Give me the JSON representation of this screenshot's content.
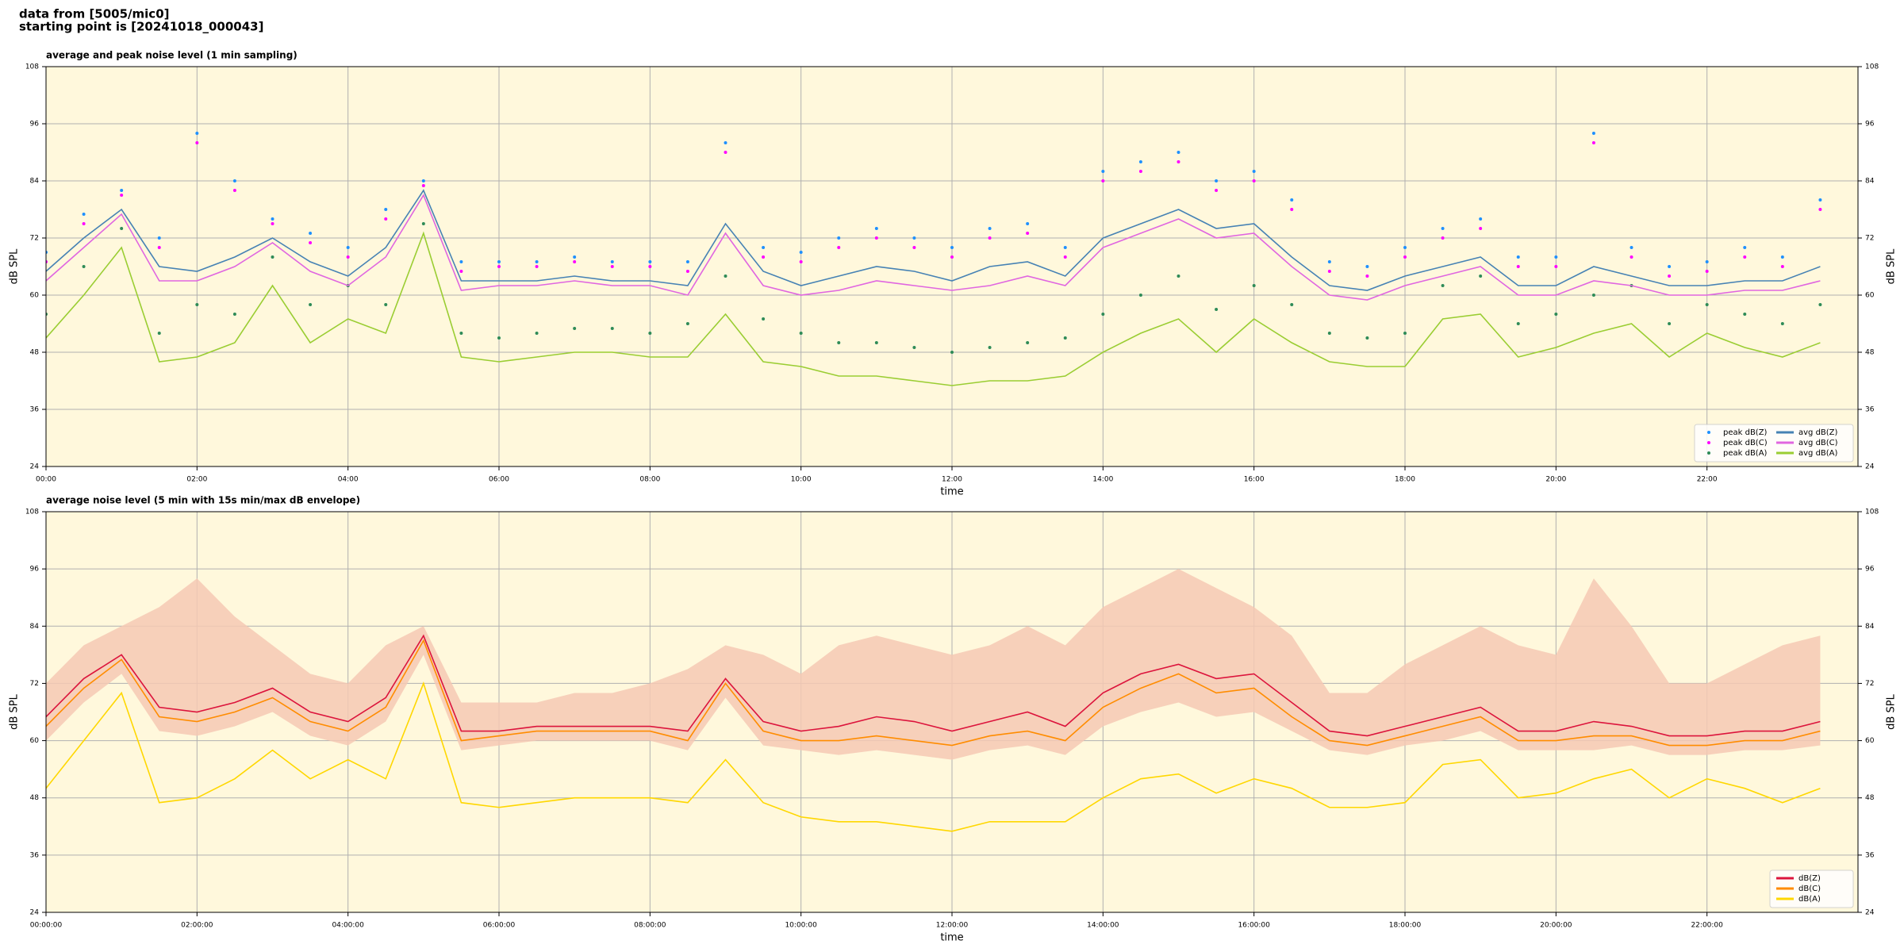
{
  "suptitle": [
    "data from [5005/mic0]",
    "starting point is [20241018_000043]"
  ],
  "chart_data": [
    {
      "type": "line",
      "title": "average and peak noise level (1 min sampling)",
      "xlabel": "time",
      "ylabel": "dB SPL",
      "background": "#fff8dc",
      "grid": true,
      "legend": "lower right",
      "legend_columns": 2,
      "xlim": [
        0,
        24
      ],
      "ylim": [
        24,
        108
      ],
      "yticks": [
        24,
        36,
        48,
        60,
        72,
        84,
        96,
        108
      ],
      "xticks": [
        {
          "value": 0,
          "label": "00:00"
        },
        {
          "value": 2,
          "label": "02:00"
        },
        {
          "value": 4,
          "label": "04:00"
        },
        {
          "value": 6,
          "label": "06:00"
        },
        {
          "value": 8,
          "label": "08:00"
        },
        {
          "value": 10,
          "label": "10:00"
        },
        {
          "value": 12,
          "label": "12:00"
        },
        {
          "value": 14,
          "label": "14:00"
        },
        {
          "value": 16,
          "label": "16:00"
        },
        {
          "value": 18,
          "label": "18:00"
        },
        {
          "value": 20,
          "label": "20:00"
        },
        {
          "value": 22,
          "label": "22:00"
        }
      ],
      "x": [
        0,
        0.5,
        1,
        1.5,
        2,
        2.5,
        3,
        3.5,
        4,
        4.5,
        5,
        5.5,
        6,
        6.5,
        7,
        7.5,
        8,
        8.5,
        9,
        9.5,
        10,
        10.5,
        11,
        11.5,
        12,
        12.5,
        13,
        13.5,
        14,
        14.5,
        15,
        15.5,
        16,
        16.5,
        17,
        17.5,
        18,
        18.5,
        19,
        19.5,
        20,
        20.5,
        21,
        21.5,
        22,
        22.5,
        23,
        23.5
      ],
      "series": [
        {
          "name": "peak dB(Z)",
          "color": "#1e90ff",
          "style": "dots",
          "values": [
            69,
            77,
            82,
            72,
            94,
            84,
            76,
            73,
            70,
            78,
            84,
            67,
            67,
            67,
            68,
            67,
            67,
            67,
            92,
            70,
            69,
            72,
            74,
            72,
            70,
            74,
            75,
            70,
            86,
            88,
            90,
            84,
            86,
            80,
            67,
            66,
            70,
            74,
            76,
            68,
            68,
            94,
            70,
            66,
            67,
            70,
            68,
            80
          ]
        },
        {
          "name": "peak dB(C)",
          "color": "#ff00ff",
          "style": "dots",
          "values": [
            67,
            75,
            81,
            70,
            92,
            82,
            75,
            71,
            68,
            76,
            83,
            65,
            66,
            66,
            67,
            66,
            66,
            65,
            90,
            68,
            67,
            70,
            72,
            70,
            68,
            72,
            73,
            68,
            84,
            86,
            88,
            82,
            84,
            78,
            65,
            64,
            68,
            72,
            74,
            66,
            66,
            92,
            68,
            64,
            65,
            68,
            66,
            78
          ]
        },
        {
          "name": "peak dB(A)",
          "color": "#2e8b57",
          "style": "dots",
          "values": [
            56,
            66,
            74,
            52,
            58,
            56,
            68,
            58,
            62,
            58,
            75,
            52,
            51,
            52,
            53,
            53,
            52,
            54,
            64,
            55,
            52,
            50,
            50,
            49,
            48,
            49,
            50,
            51,
            56,
            60,
            64,
            57,
            62,
            58,
            52,
            51,
            52,
            62,
            64,
            54,
            56,
            60,
            62,
            54,
            58,
            56,
            54,
            58
          ]
        },
        {
          "name": "avg dB(Z)",
          "color": "#4682b4",
          "style": "line",
          "values": [
            65,
            72,
            78,
            66,
            65,
            68,
            72,
            67,
            64,
            70,
            82,
            63,
            63,
            63,
            64,
            63,
            63,
            62,
            75,
            65,
            62,
            64,
            66,
            65,
            63,
            66,
            67,
            64,
            72,
            75,
            78,
            74,
            75,
            68,
            62,
            61,
            64,
            66,
            68,
            62,
            62,
            66,
            64,
            62,
            62,
            63,
            63,
            66
          ]
        },
        {
          "name": "avg dB(C)",
          "color": "#e066e0",
          "style": "line",
          "values": [
            63,
            70,
            77,
            63,
            63,
            66,
            71,
            65,
            62,
            68,
            81,
            61,
            62,
            62,
            63,
            62,
            62,
            60,
            73,
            62,
            60,
            61,
            63,
            62,
            61,
            62,
            64,
            62,
            70,
            73,
            76,
            72,
            73,
            66,
            60,
            59,
            62,
            64,
            66,
            60,
            60,
            63,
            62,
            60,
            60,
            61,
            61,
            63
          ]
        },
        {
          "name": "avg dB(A)",
          "color": "#9acd32",
          "style": "line",
          "values": [
            51,
            60,
            70,
            46,
            47,
            50,
            62,
            50,
            55,
            52,
            73,
            47,
            46,
            47,
            48,
            48,
            47,
            47,
            56,
            46,
            45,
            43,
            43,
            42,
            41,
            42,
            42,
            43,
            48,
            52,
            55,
            48,
            55,
            50,
            46,
            45,
            45,
            55,
            56,
            47,
            49,
            52,
            54,
            47,
            52,
            49,
            47,
            50
          ]
        }
      ]
    },
    {
      "type": "line",
      "title": "average noise level (5 min with 15s min/max dB envelope)",
      "xlabel": "time",
      "ylabel": "dB SPL",
      "background": "#fff8dc",
      "grid": true,
      "legend": "lower right",
      "legend_columns": 1,
      "xlim": [
        0,
        24
      ],
      "ylim": [
        24,
        108
      ],
      "yticks": [
        24,
        36,
        48,
        60,
        72,
        84,
        96,
        108
      ],
      "xticks": [
        {
          "value": 0,
          "label": "00:00:00"
        },
        {
          "value": 2,
          "label": "02:00:00"
        },
        {
          "value": 4,
          "label": "04:00:00"
        },
        {
          "value": 6,
          "label": "06:00:00"
        },
        {
          "value": 8,
          "label": "08:00:00"
        },
        {
          "value": 10,
          "label": "10:00:00"
        },
        {
          "value": 12,
          "label": "12:00:00"
        },
        {
          "value": 14,
          "label": "14:00:00"
        },
        {
          "value": 16,
          "label": "16:00:00"
        },
        {
          "value": 18,
          "label": "18:00:00"
        },
        {
          "value": 20,
          "label": "20:00:00"
        },
        {
          "value": 22,
          "label": "22:00:00"
        }
      ],
      "x": [
        0,
        0.5,
        1,
        1.5,
        2,
        2.5,
        3,
        3.5,
        4,
        4.5,
        5,
        5.5,
        6,
        6.5,
        7,
        7.5,
        8,
        8.5,
        9,
        9.5,
        10,
        10.5,
        11,
        11.5,
        12,
        12.5,
        13,
        13.5,
        14,
        14.5,
        15,
        15.5,
        16,
        16.5,
        17,
        17.5,
        18,
        18.5,
        19,
        19.5,
        20,
        20.5,
        21,
        21.5,
        22,
        22.5,
        23,
        23.5
      ],
      "envelope": {
        "color": "#f6c9b4",
        "min": [
          60,
          68,
          74,
          62,
          61,
          63,
          66,
          61,
          59,
          64,
          78,
          58,
          59,
          60,
          60,
          60,
          60,
          58,
          69,
          59,
          58,
          57,
          58,
          57,
          56,
          58,
          59,
          57,
          63,
          66,
          68,
          65,
          66,
          62,
          58,
          57,
          59,
          60,
          62,
          58,
          58,
          58,
          59,
          57,
          57,
          58,
          58,
          59
        ],
        "max": [
          72,
          80,
          84,
          88,
          94,
          86,
          80,
          74,
          72,
          80,
          84,
          68,
          68,
          68,
          70,
          70,
          72,
          75,
          80,
          78,
          74,
          80,
          82,
          80,
          78,
          80,
          84,
          80,
          88,
          92,
          96,
          92,
          88,
          82,
          70,
          70,
          76,
          80,
          84,
          80,
          78,
          94,
          84,
          72,
          72,
          76,
          80,
          82
        ]
      },
      "series": [
        {
          "name": "dB(Z)",
          "color": "#dc143c",
          "style": "line",
          "values": [
            65,
            73,
            78,
            67,
            66,
            68,
            71,
            66,
            64,
            69,
            82,
            62,
            62,
            63,
            63,
            63,
            63,
            62,
            73,
            64,
            62,
            63,
            65,
            64,
            62,
            64,
            66,
            63,
            70,
            74,
            76,
            73,
            74,
            68,
            62,
            61,
            63,
            65,
            67,
            62,
            62,
            64,
            63,
            61,
            61,
            62,
            62,
            64
          ]
        },
        {
          "name": "dB(C)",
          "color": "#ff8c00",
          "style": "line",
          "values": [
            63,
            71,
            77,
            65,
            64,
            66,
            69,
            64,
            62,
            67,
            81,
            60,
            61,
            62,
            62,
            62,
            62,
            60,
            72,
            62,
            60,
            60,
            61,
            60,
            59,
            61,
            62,
            60,
            67,
            71,
            74,
            70,
            71,
            65,
            60,
            59,
            61,
            63,
            65,
            60,
            60,
            61,
            61,
            59,
            59,
            60,
            60,
            62
          ]
        },
        {
          "name": "dB(A)",
          "color": "#ffd700",
          "style": "line",
          "values": [
            50,
            60,
            70,
            47,
            48,
            52,
            58,
            52,
            56,
            52,
            72,
            47,
            46,
            47,
            48,
            48,
            48,
            47,
            56,
            47,
            44,
            43,
            43,
            42,
            41,
            43,
            43,
            43,
            48,
            52,
            53,
            49,
            52,
            50,
            46,
            46,
            47,
            55,
            56,
            48,
            49,
            52,
            54,
            48,
            52,
            50,
            47,
            50
          ]
        }
      ]
    }
  ]
}
